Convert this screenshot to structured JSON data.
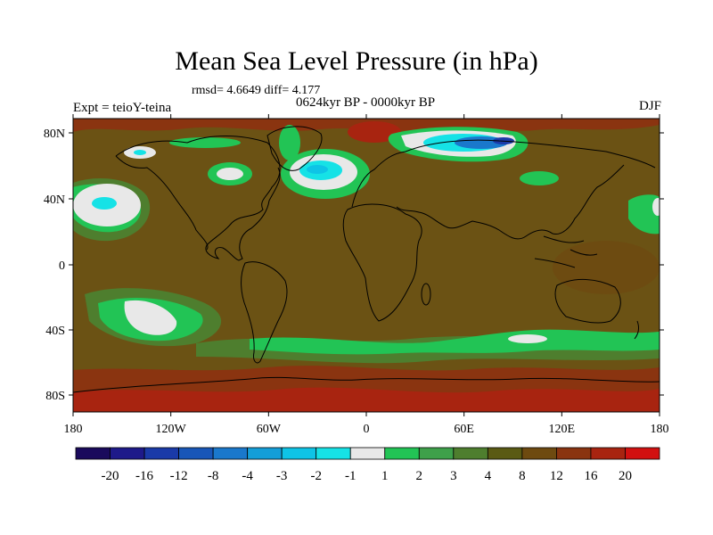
{
  "title": "Mean Sea Level Pressure (in hPa)",
  "stats": "rmsd= 4.6649  diff= 4.177",
  "period": "0624kyr BP - 0000kyr BP",
  "experiment": "Expt = teioY-teina",
  "season": "DJF",
  "latitude_labels": [
    "80N",
    "40N",
    "0",
    "40S",
    "80S"
  ],
  "longitude_labels": [
    "180",
    "120W",
    "60W",
    "0",
    "60E",
    "120E",
    "180"
  ],
  "colorbar": {
    "labels": [
      "-20",
      "-16",
      "-12",
      "-8",
      "-4",
      "-3",
      "-2",
      "-1",
      "1",
      "2",
      "3",
      "4",
      "8",
      "12",
      "16",
      "20"
    ],
    "colors": [
      "#1a0a5c",
      "#1e1a8a",
      "#1a3aa8",
      "#1856b8",
      "#1a78cc",
      "#149ed8",
      "#0ec4e6",
      "#16e2e6",
      "#e8e8e8",
      "#22c455",
      "#3ea04a",
      "#4e7e2e",
      "#5a5a14",
      "#6e4a10",
      "#8a3410",
      "#a82410",
      "#d21010"
    ]
  },
  "colors": {
    "background_field": "#6b5214",
    "land_outline": "#000000"
  }
}
